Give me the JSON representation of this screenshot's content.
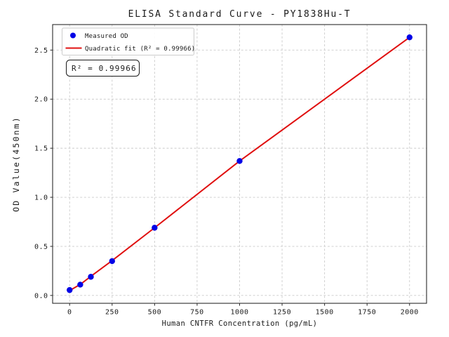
{
  "chart_data": {
    "type": "scatter",
    "title": "ELISA Standard Curve - PY1838Hu-T",
    "xlabel": "Human CNTFR Concentration (pg/mL)",
    "ylabel": "OD Value(450nm)",
    "xlim": [
      -100,
      2100
    ],
    "ylim": [
      -0.08,
      2.76
    ],
    "xticks": [
      0,
      250,
      500,
      750,
      1000,
      1250,
      1500,
      1750,
      2000
    ],
    "yticks": [
      0.0,
      0.5,
      1.0,
      1.5,
      2.0,
      2.5
    ],
    "grid": true,
    "legend_position": "upper-left",
    "annotation": {
      "text": "R² = 0.99966"
    },
    "colors": {
      "marker": "#0202e6",
      "fit_line": "#e01010",
      "grid": "#cbcbcb",
      "spine": "#2a2a2a",
      "text": "#1a1a1a",
      "legend_border": "#cccccc"
    },
    "series": [
      {
        "name": "Measured OD",
        "type": "scatter",
        "color": "#0202e6",
        "x": [
          0,
          62.5,
          125,
          250,
          500,
          1000,
          2000
        ],
        "y": [
          0.055,
          0.11,
          0.19,
          0.35,
          0.69,
          1.37,
          2.63
        ]
      },
      {
        "name": "Quadratic fit (R² = 0.99966)",
        "type": "line",
        "color": "#e01010",
        "x": [
          0,
          62.5,
          125,
          250,
          500,
          1000,
          2000
        ],
        "y": [
          0.05,
          0.112,
          0.195,
          0.355,
          0.69,
          1.37,
          2.63
        ]
      }
    ]
  }
}
